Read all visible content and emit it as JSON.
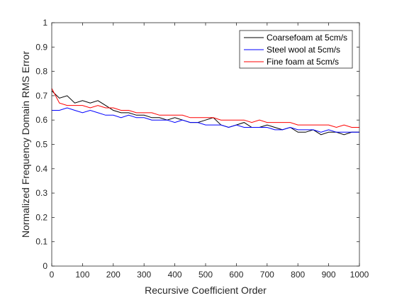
{
  "chart_data": {
    "type": "line",
    "xlabel": "Recursive Coefficient Order",
    "ylabel": "Normalized Frequency Domain RMS Error",
    "xlim": [
      0,
      1000
    ],
    "ylim": [
      0,
      1
    ],
    "xticks": [
      0,
      100,
      200,
      300,
      400,
      500,
      600,
      700,
      800,
      900,
      1000
    ],
    "yticks": [
      0,
      0.1,
      0.2,
      0.3,
      0.4,
      0.5,
      0.6,
      0.7,
      0.8,
      0.9,
      1
    ],
    "grid": false,
    "legend_position": "top-right",
    "series": [
      {
        "name": "Coarsefoam at 5cm/s",
        "color": "#000000",
        "x": [
          0,
          25,
          50,
          75,
          100,
          125,
          150,
          175,
          200,
          225,
          250,
          275,
          300,
          325,
          350,
          375,
          400,
          425,
          450,
          475,
          500,
          525,
          550,
          575,
          600,
          625,
          650,
          675,
          700,
          725,
          750,
          775,
          800,
          825,
          850,
          875,
          900,
          925,
          950,
          975,
          1000
        ],
        "values": [
          0.72,
          0.69,
          0.7,
          0.67,
          0.68,
          0.67,
          0.68,
          0.66,
          0.64,
          0.63,
          0.63,
          0.62,
          0.62,
          0.61,
          0.61,
          0.6,
          0.61,
          0.6,
          0.59,
          0.59,
          0.6,
          0.61,
          0.58,
          0.57,
          0.58,
          0.59,
          0.57,
          0.57,
          0.58,
          0.57,
          0.56,
          0.57,
          0.55,
          0.55,
          0.56,
          0.54,
          0.55,
          0.55,
          0.54,
          0.55,
          0.55
        ]
      },
      {
        "name": "Steel wool at 5cm/s",
        "color": "#0000ff",
        "x": [
          0,
          25,
          50,
          75,
          100,
          125,
          150,
          175,
          200,
          225,
          250,
          275,
          300,
          325,
          350,
          375,
          400,
          425,
          450,
          475,
          500,
          525,
          550,
          575,
          600,
          625,
          650,
          675,
          700,
          725,
          750,
          775,
          800,
          825,
          850,
          875,
          900,
          925,
          950,
          975,
          1000
        ],
        "values": [
          0.64,
          0.64,
          0.65,
          0.64,
          0.63,
          0.64,
          0.63,
          0.62,
          0.62,
          0.61,
          0.62,
          0.61,
          0.61,
          0.6,
          0.6,
          0.6,
          0.59,
          0.6,
          0.59,
          0.59,
          0.58,
          0.58,
          0.58,
          0.57,
          0.58,
          0.57,
          0.57,
          0.57,
          0.57,
          0.56,
          0.56,
          0.57,
          0.56,
          0.56,
          0.56,
          0.55,
          0.56,
          0.55,
          0.55,
          0.55,
          0.55
        ]
      },
      {
        "name": "Fine foam at 5cm/s",
        "color": "#ff0000",
        "x": [
          0,
          25,
          50,
          75,
          100,
          125,
          150,
          175,
          200,
          225,
          250,
          275,
          300,
          325,
          350,
          375,
          400,
          425,
          450,
          475,
          500,
          525,
          550,
          575,
          600,
          625,
          650,
          675,
          700,
          725,
          750,
          775,
          800,
          825,
          850,
          875,
          900,
          925,
          950,
          975,
          1000
        ],
        "values": [
          0.73,
          0.67,
          0.66,
          0.66,
          0.66,
          0.65,
          0.66,
          0.65,
          0.65,
          0.64,
          0.64,
          0.63,
          0.63,
          0.63,
          0.62,
          0.62,
          0.62,
          0.62,
          0.61,
          0.61,
          0.61,
          0.61,
          0.6,
          0.6,
          0.6,
          0.6,
          0.59,
          0.6,
          0.59,
          0.59,
          0.59,
          0.59,
          0.58,
          0.58,
          0.58,
          0.58,
          0.58,
          0.57,
          0.58,
          0.57,
          0.57
        ]
      }
    ]
  }
}
